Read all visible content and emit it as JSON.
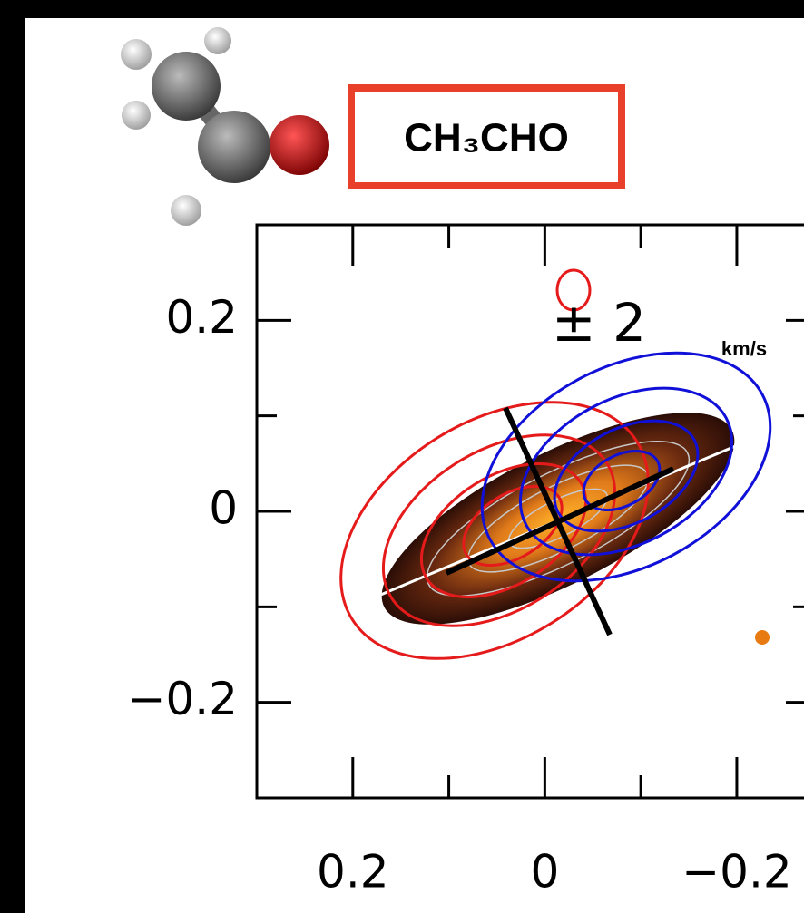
{
  "chart_data": {
    "type": "contour",
    "title": "CH₃CHO",
    "annotations": [
      "± 2",
      "km/s"
    ],
    "xlim": [
      0.3,
      -0.27
    ],
    "ylim": [
      -0.3,
      0.3
    ],
    "xticks": [
      0.2,
      0,
      {
        "value": -0.2,
        "label": "−0.2"
      }
    ],
    "xticks_minor": [
      0.1,
      -0.1
    ],
    "yticks": [
      {
        "value": -0.2,
        "label": "−0.2"
      },
      0,
      0.2
    ],
    "yticks_minor": [
      -0.1,
      0.1
    ],
    "frame_color": "#000000"
  }
}
